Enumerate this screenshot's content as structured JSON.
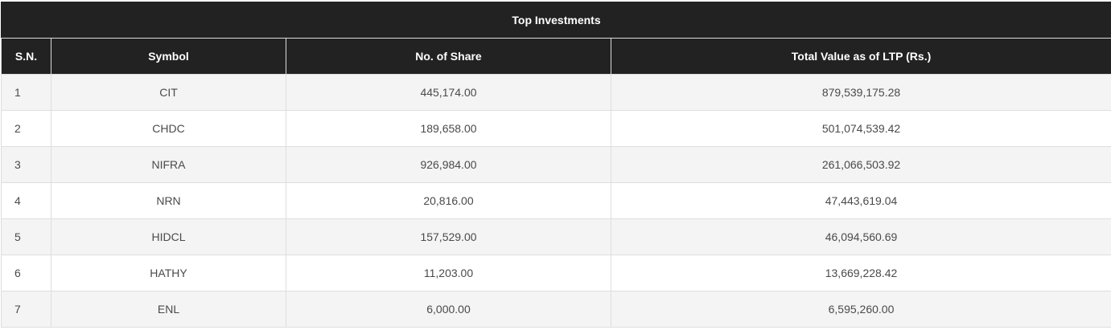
{
  "table": {
    "title": "Top Investments",
    "headers": [
      "S.N.",
      "Symbol",
      "No. of Share",
      "Total Value as of LTP (Rs.)"
    ],
    "rows": [
      [
        "1",
        "CIT",
        "445,174.00",
        "879,539,175.28"
      ],
      [
        "2",
        "CHDC",
        "189,658.00",
        "501,074,539.42"
      ],
      [
        "3",
        "NIFRA",
        "926,984.00",
        "261,066,503.92"
      ],
      [
        "4",
        "NRN",
        "20,816.00",
        "47,443,619.04"
      ],
      [
        "5",
        "HIDCL",
        "157,529.00",
        "46,094,560.69"
      ],
      [
        "6",
        "HATHY",
        "11,203.00",
        "13,669,228.42"
      ],
      [
        "7",
        "ENL",
        "6,000.00",
        "6,595,260.00"
      ]
    ]
  }
}
